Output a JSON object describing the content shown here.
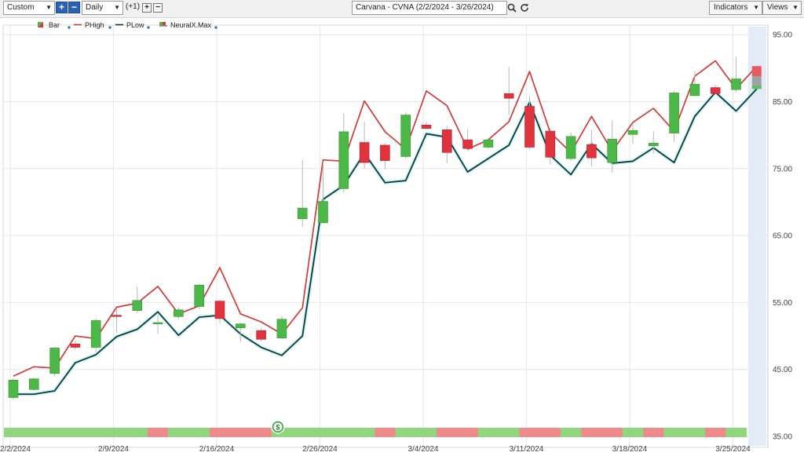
{
  "toolbar": {
    "period_select": "Custom",
    "interval_select": "Daily",
    "compare_label": "(+1)",
    "title": "Carvana - CVNA (2/2/2024 - 3/26/2024)",
    "indicators_label": "Indicators",
    "views_label": "Views"
  },
  "icons": {
    "add": "plus-icon",
    "remove": "minus-icon",
    "search": "search-icon",
    "refresh": "refresh-icon",
    "dropdown": "chevron-down-icon"
  },
  "colors": {
    "up_bar": "#4cb848",
    "down_bar": "#e0333d",
    "phigh_line": "#d23a3a",
    "plow_line": "#0b3a3a",
    "signal_up": "#8fd67d",
    "signal_down": "#ef8a8a",
    "forecast_band": "#e3ecf6"
  },
  "chart_data": {
    "type": "candlestick",
    "title": "Carvana - CVNA (2/2/2024 - 3/26/2024)",
    "legend": [
      {
        "name": "Bar"
      },
      {
        "name": "PHigh"
      },
      {
        "name": "PLow"
      },
      {
        "name": "NeuralX.Max"
      }
    ],
    "legend_placement": "top-left",
    "y_axis": {
      "position": "right",
      "ylim": [
        35,
        97
      ],
      "ticks": [
        35.0,
        45.0,
        55.0,
        65.0,
        75.0,
        85.0,
        95.0
      ],
      "tick_labels": [
        "35.00",
        "45.00",
        "55.00",
        "65.00",
        "75.00",
        "85.00",
        "95.00"
      ]
    },
    "x_axis": {
      "tick_labels": [
        "2/2/2024",
        "2/9/2024",
        "2/16/2024",
        "2/26/2024",
        "3/4/2024",
        "3/11/2024",
        "3/18/2024",
        "3/25/2024"
      ],
      "tick_bar_index": [
        0,
        5,
        10,
        15,
        20,
        25,
        30,
        35
      ]
    },
    "grid": true,
    "bars": [
      {
        "date": "2/2/2024",
        "open": 40.8,
        "high": 43.6,
        "low": 40.5,
        "close": 43.4
      },
      {
        "date": "2/5/2024",
        "open": 42.0,
        "high": 43.8,
        "low": 41.8,
        "close": 43.6
      },
      {
        "date": "2/6/2024",
        "open": 44.4,
        "high": 48.4,
        "low": 44.0,
        "close": 48.2
      },
      {
        "date": "2/7/2024",
        "open": 48.8,
        "high": 49.3,
        "low": 48.0,
        "close": 48.3
      },
      {
        "date": "2/8/2024",
        "open": 48.3,
        "high": 52.6,
        "low": 47.6,
        "close": 52.3
      },
      {
        "date": "2/9/2024",
        "open": 53.1,
        "high": 54.0,
        "low": 50.5,
        "close": 52.9
      },
      {
        "date": "2/12/2024",
        "open": 53.8,
        "high": 57.4,
        "low": 53.4,
        "close": 55.3
      },
      {
        "date": "2/13/2024",
        "open": 51.8,
        "high": 53.2,
        "low": 50.3,
        "close": 52.0
      },
      {
        "date": "2/14/2024",
        "open": 52.9,
        "high": 54.3,
        "low": 52.5,
        "close": 53.9
      },
      {
        "date": "2/15/2024",
        "open": 54.4,
        "high": 57.8,
        "low": 54.0,
        "close": 57.6
      },
      {
        "date": "2/16/2024",
        "open": 55.2,
        "high": 55.4,
        "low": 51.9,
        "close": 52.6
      },
      {
        "date": "2/20/2024",
        "open": 51.2,
        "high": 52.0,
        "low": 49.1,
        "close": 51.8
      },
      {
        "date": "2/21/2024",
        "open": 50.8,
        "high": 51.2,
        "low": 49.2,
        "close": 49.5
      },
      {
        "date": "2/22/2024",
        "open": 49.7,
        "high": 53.0,
        "low": 49.5,
        "close": 52.5
      },
      {
        "date": "2/23/2024",
        "open": 67.5,
        "high": 76.3,
        "low": 66.3,
        "close": 69.1
      },
      {
        "date": "2/26/2024",
        "open": 66.9,
        "high": 76.0,
        "low": 66.8,
        "close": 70.1
      },
      {
        "date": "2/27/2024",
        "open": 72.0,
        "high": 83.3,
        "low": 71.5,
        "close": 80.5
      },
      {
        "date": "2/28/2024",
        "open": 78.9,
        "high": 82.0,
        "low": 75.0,
        "close": 75.9
      },
      {
        "date": "2/29/2024",
        "open": 78.5,
        "high": 78.8,
        "low": 74.9,
        "close": 76.2
      },
      {
        "date": "3/1/2024",
        "open": 76.8,
        "high": 83.4,
        "low": 76.5,
        "close": 83.0
      },
      {
        "date": "3/4/2024",
        "open": 81.5,
        "high": 82.0,
        "low": 80.8,
        "close": 81.0
      },
      {
        "date": "3/5/2024",
        "open": 80.8,
        "high": 81.4,
        "low": 75.8,
        "close": 77.4
      },
      {
        "date": "3/6/2024",
        "open": 79.3,
        "high": 80.9,
        "low": 77.6,
        "close": 78.0
      },
      {
        "date": "3/7/2024",
        "open": 78.2,
        "high": 79.6,
        "low": 77.9,
        "close": 79.3
      },
      {
        "date": "3/8/2024",
        "open": 86.2,
        "high": 90.2,
        "low": 83.0,
        "close": 85.5
      },
      {
        "date": "3/11/2024",
        "open": 84.3,
        "high": 85.8,
        "low": 77.9,
        "close": 78.2
      },
      {
        "date": "3/12/2024",
        "open": 80.6,
        "high": 81.0,
        "low": 75.6,
        "close": 76.7
      },
      {
        "date": "3/13/2024",
        "open": 76.5,
        "high": 80.4,
        "low": 76.2,
        "close": 79.8
      },
      {
        "date": "3/14/2024",
        "open": 78.6,
        "high": 80.8,
        "low": 75.3,
        "close": 76.6
      },
      {
        "date": "3/15/2024",
        "open": 75.9,
        "high": 82.2,
        "low": 74.4,
        "close": 79.4
      },
      {
        "date": "3/18/2024",
        "open": 80.1,
        "high": 81.6,
        "low": 78.7,
        "close": 80.7
      },
      {
        "date": "3/19/2024",
        "open": 78.4,
        "high": 80.6,
        "low": 77.2,
        "close": 78.8
      },
      {
        "date": "3/20/2024",
        "open": 80.3,
        "high": 86.6,
        "low": 79.0,
        "close": 86.3
      },
      {
        "date": "3/21/2024",
        "open": 85.9,
        "high": 89.6,
        "low": 85.8,
        "close": 87.6
      },
      {
        "date": "3/22/2024",
        "open": 87.1,
        "high": 87.5,
        "low": 86.1,
        "close": 86.2
      },
      {
        "date": "3/25/2024",
        "open": 86.8,
        "high": 91.7,
        "low": 86.5,
        "close": 88.4
      }
    ],
    "forecast_bar": {
      "open": 90.3,
      "high": 90.3,
      "low": 86.8,
      "close": 86.9
    },
    "phigh": [
      44.0,
      45.4,
      45.2,
      50.0,
      49.6,
      54.3,
      54.9,
      57.4,
      53.3,
      54.5,
      60.2,
      53.3,
      52.1,
      50.3,
      54.2,
      76.3,
      76.1,
      85.1,
      80.5,
      77.9,
      86.6,
      84.4,
      77.9,
      79.3,
      82.0,
      89.5,
      80.4,
      77.4,
      82.8,
      77.6,
      81.9,
      84.0,
      80.6,
      88.8,
      91.1,
      86.9,
      90.3
    ],
    "plow": [
      41.3,
      41.3,
      41.8,
      46.0,
      47.2,
      49.9,
      51.0,
      53.6,
      50.1,
      52.8,
      53.1,
      50.3,
      48.3,
      47.1,
      50.0,
      70.4,
      72.5,
      77.3,
      72.9,
      73.2,
      80.2,
      79.7,
      74.5,
      76.5,
      78.5,
      84.9,
      77.0,
      74.1,
      78.7,
      75.8,
      76.1,
      78.1,
      75.9,
      82.8,
      86.4,
      83.6,
      86.9
    ],
    "signal_bar": [
      "up",
      "up",
      "up",
      "up",
      "up",
      "up",
      "up",
      "down",
      "up",
      "up",
      "down",
      "down",
      "down",
      "up",
      "up",
      "up",
      "up",
      "up",
      "down",
      "up",
      "up",
      "down",
      "down",
      "up",
      "up",
      "down",
      "down",
      "up",
      "down",
      "down",
      "up",
      "down",
      "up",
      "up",
      "down",
      "up"
    ],
    "annotation": {
      "bar_index": 13,
      "label": "$"
    }
  }
}
